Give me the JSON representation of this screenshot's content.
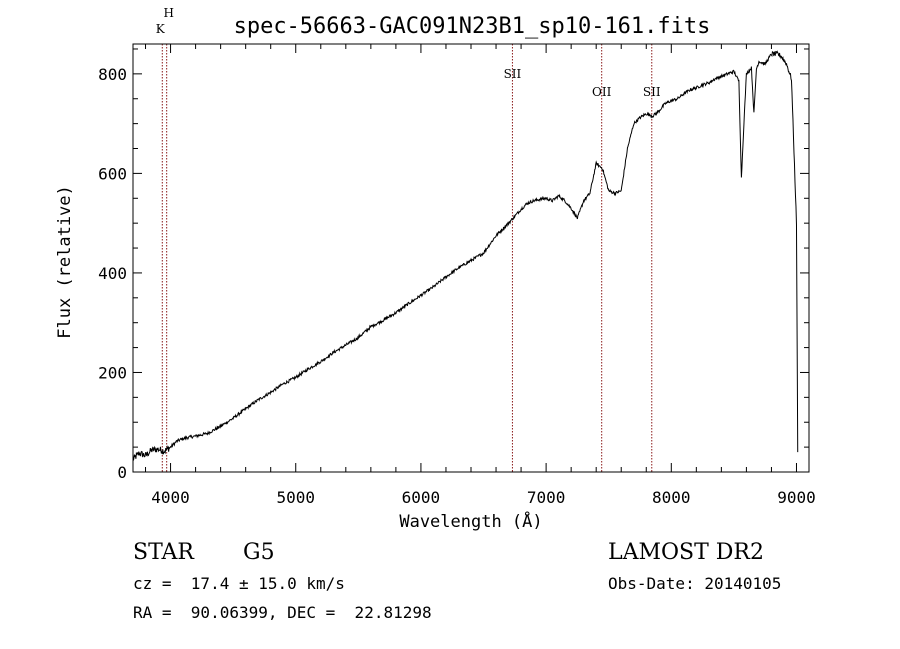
{
  "chart_data": {
    "type": "line",
    "title": "spec-56663-GAC091N23B1_sp10-161.fits",
    "xlabel": "Wavelength (Å)",
    "ylabel": "Flux (relative)",
    "xlim": [
      3700,
      9100
    ],
    "ylim": [
      0,
      860
    ],
    "xticks": [
      4000,
      5000,
      6000,
      7000,
      8000,
      9000
    ],
    "yticks": [
      0,
      200,
      400,
      600,
      800
    ],
    "xtick_labels": [
      "4000",
      "5000",
      "6000",
      "7000",
      "8000",
      "9000"
    ],
    "ytick_labels": [
      "0",
      "200",
      "400",
      "600",
      "800"
    ],
    "line_color": "#000000",
    "marker_color": "#8b1a1a",
    "lines": [
      {
        "label": "H",
        "x": 3969
      },
      {
        "label": "K",
        "x": 3934
      },
      {
        "label": "SII",
        "x": 6731
      },
      {
        "label": "OII",
        "x": 7444
      },
      {
        "label": "SII",
        "x": 7844
      }
    ],
    "series": [
      {
        "x": [
          3700,
          3750,
          3800,
          3850,
          3900,
          3950,
          4000,
          4050,
          4100,
          4150,
          4200,
          4300,
          4400,
          4500,
          4600,
          4700,
          4800,
          4900,
          5000,
          5100,
          5200,
          5300,
          5400,
          5500,
          5600,
          5700,
          5800,
          5900,
          6000,
          6100,
          6200,
          6300,
          6400,
          6500,
          6600,
          6700,
          6800,
          6850,
          6900,
          6950,
          7000,
          7050,
          7100,
          7150,
          7200,
          7250,
          7300,
          7350,
          7400,
          7450,
          7500,
          7550,
          7600,
          7650,
          7700,
          7750,
          7800,
          7850,
          7900,
          7950,
          8000,
          8050,
          8100,
          8150,
          8200,
          8250,
          8300,
          8350,
          8400,
          8450,
          8500,
          8540,
          8560,
          8580,
          8600,
          8640,
          8660,
          8680,
          8700,
          8750,
          8800,
          8850,
          8880,
          8920,
          8960,
          9000,
          9010
        ],
        "y": [
          25,
          38,
          33,
          44,
          46,
          42,
          50,
          62,
          67,
          70,
          72,
          78,
          92,
          108,
          127,
          145,
          160,
          177,
          190,
          207,
          222,
          240,
          255,
          270,
          292,
          305,
          320,
          338,
          355,
          372,
          392,
          410,
          425,
          440,
          475,
          500,
          528,
          540,
          545,
          548,
          550,
          545,
          555,
          545,
          530,
          510,
          545,
          560,
          620,
          610,
          565,
          560,
          565,
          650,
          700,
          712,
          720,
          715,
          725,
          740,
          746,
          750,
          760,
          768,
          772,
          778,
          782,
          790,
          795,
          800,
          805,
          785,
          590,
          700,
          800,
          812,
          720,
          810,
          825,
          820,
          840,
          840,
          835,
          820,
          790,
          500,
          40
        ]
      }
    ]
  },
  "info": {
    "object_class": "STAR",
    "subclass": "G5",
    "survey": "LAMOST DR2",
    "redshift": "cz =  17.4 ± 15.0 km/s",
    "obs_date": "Obs-Date: 20140105",
    "coords": "RA =  90.06399, DEC =  22.81298"
  }
}
